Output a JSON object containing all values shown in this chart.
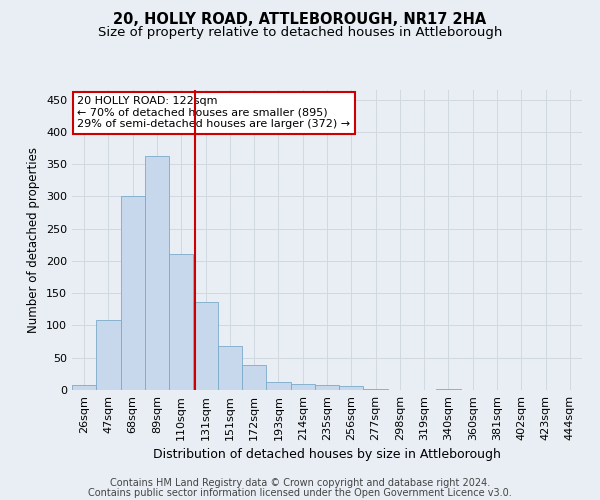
{
  "title1": "20, HOLLY ROAD, ATTLEBOROUGH, NR17 2HA",
  "title2": "Size of property relative to detached houses in Attleborough",
  "xlabel": "Distribution of detached houses by size in Attleborough",
  "ylabel": "Number of detached properties",
  "categories": [
    "26sqm",
    "47sqm",
    "68sqm",
    "89sqm",
    "110sqm",
    "131sqm",
    "151sqm",
    "172sqm",
    "193sqm",
    "214sqm",
    "235sqm",
    "256sqm",
    "277sqm",
    "298sqm",
    "319sqm",
    "340sqm",
    "360sqm",
    "381sqm",
    "402sqm",
    "423sqm",
    "444sqm"
  ],
  "values": [
    8,
    108,
    301,
    362,
    211,
    136,
    68,
    38,
    13,
    10,
    8,
    6,
    2,
    0,
    0,
    2,
    0,
    0,
    0,
    0,
    0
  ],
  "bar_color": "#c8d8ec",
  "bar_edge_color": "#7aaac8",
  "grid_color": "#d0d8e0",
  "vline_x": 4.57,
  "vline_color": "#cc0000",
  "annotation_text": "20 HOLLY ROAD: 122sqm\n← 70% of detached houses are smaller (895)\n29% of semi-detached houses are larger (372) →",
  "annotation_box_color": "#ffffff",
  "annotation_box_edge": "#cc0000",
  "footer1": "Contains HM Land Registry data © Crown copyright and database right 2024.",
  "footer2": "Contains public sector information licensed under the Open Government Licence v3.0.",
  "ylim": [
    0,
    465
  ],
  "yticks": [
    0,
    50,
    100,
    150,
    200,
    250,
    300,
    350,
    400,
    450
  ],
  "title1_fontsize": 10.5,
  "title2_fontsize": 9.5,
  "xlabel_fontsize": 9,
  "ylabel_fontsize": 8.5,
  "tick_fontsize": 8,
  "annotation_fontsize": 8,
  "footer_fontsize": 7,
  "background_color": "#e8eef4"
}
